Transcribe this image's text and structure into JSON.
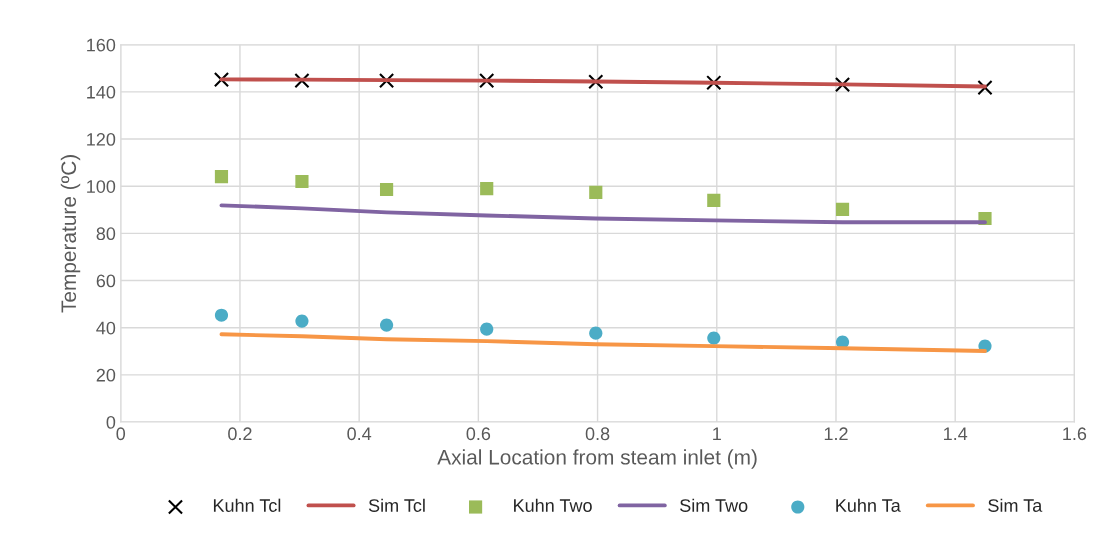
{
  "chart_data": {
    "type": "line",
    "xlabel": "Axial Location from steam inlet (m)",
    "ylabel": "Temperature (ºC)",
    "xlim": [
      0,
      1.6
    ],
    "xticks": [
      0,
      0.2,
      0.4,
      0.6,
      0.8,
      1,
      1.2,
      1.4,
      1.6
    ],
    "ylim": [
      0,
      160
    ],
    "yticks": [
      0,
      20,
      40,
      60,
      80,
      100,
      120,
      140,
      160
    ],
    "grid": true,
    "legend": "bottom",
    "x": [
      0.169,
      0.304,
      0.446,
      0.614,
      0.797,
      0.995,
      1.211,
      1.45
    ],
    "series": [
      {
        "name": "Kuhn Tcl",
        "type": "scatter",
        "marker": "cross",
        "color": "#000000",
        "values": [
          145.2,
          144.8,
          144.8,
          144.8,
          144.3,
          143.9,
          143.1,
          141.8
        ]
      },
      {
        "name": "Sim Tcl",
        "marker": "none",
        "color": "#c0504d",
        "values": [
          145.3,
          145.2,
          145.0,
          144.8,
          144.4,
          143.9,
          143.2,
          142.3
        ]
      },
      {
        "name": "Kuhn Two",
        "type": "scatter",
        "marker": "square",
        "color": "#9bbb59",
        "values": [
          104.1,
          102.0,
          98.6,
          99.0,
          97.4,
          94.0,
          90.2,
          86.3
        ]
      },
      {
        "name": "Sim Two",
        "marker": "none",
        "color": "#8064a2",
        "values": [
          91.9,
          90.6,
          88.9,
          87.6,
          86.3,
          85.5,
          84.7,
          84.7
        ]
      },
      {
        "name": "Kuhn Ta",
        "type": "scatter",
        "marker": "circle",
        "color": "#4bacc6",
        "values": [
          45.3,
          42.8,
          41.1,
          39.4,
          37.7,
          35.6,
          33.9,
          32.2
        ]
      },
      {
        "name": "Sim Ta",
        "marker": "none",
        "color": "#f79646",
        "values": [
          37.2,
          36.4,
          35.1,
          34.3,
          33.0,
          32.2,
          31.3,
          30.1
        ]
      }
    ]
  }
}
